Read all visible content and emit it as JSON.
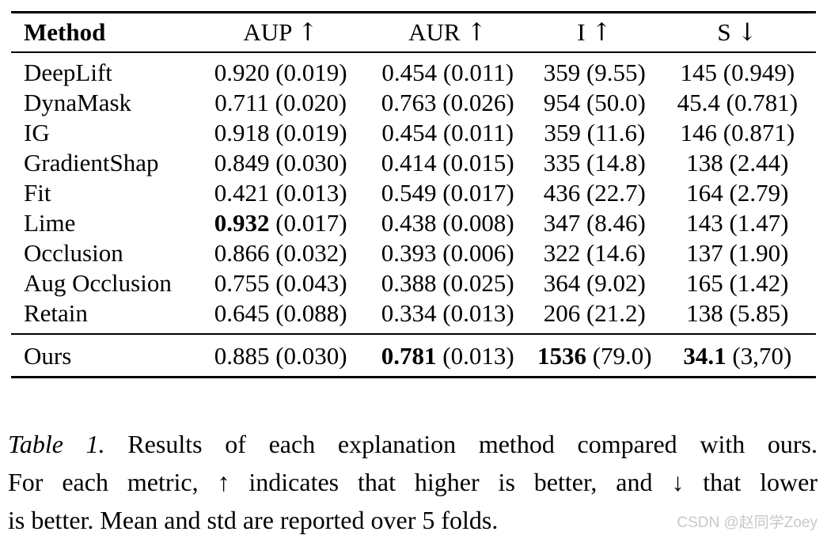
{
  "table": {
    "columns": [
      {
        "label": "Method",
        "arrow": ""
      },
      {
        "label": "AUP",
        "arrow": "↑"
      },
      {
        "label": "AUR",
        "arrow": "↑"
      },
      {
        "label": "I",
        "arrow": "↑"
      },
      {
        "label": "S",
        "arrow": "↓"
      }
    ],
    "rows": [
      {
        "method": "DeepLift",
        "cells": [
          {
            "mean": "0.920",
            "std": "(0.019)"
          },
          {
            "mean": "0.454",
            "std": "(0.011)"
          },
          {
            "mean": "359",
            "std": "(9.55)"
          },
          {
            "mean": "145",
            "std": "(0.949)"
          }
        ]
      },
      {
        "method": "DynaMask",
        "cells": [
          {
            "mean": "0.711",
            "std": "(0.020)"
          },
          {
            "mean": "0.763",
            "std": "(0.026)"
          },
          {
            "mean": "954",
            "std": "(50.0)"
          },
          {
            "mean": "45.4",
            "std": "(0.781)"
          }
        ]
      },
      {
        "method": "IG",
        "cells": [
          {
            "mean": "0.918",
            "std": "(0.019)"
          },
          {
            "mean": "0.454",
            "std": "(0.011)"
          },
          {
            "mean": "359",
            "std": "(11.6)"
          },
          {
            "mean": "146",
            "std": "(0.871)"
          }
        ]
      },
      {
        "method": "GradientShap",
        "cells": [
          {
            "mean": "0.849",
            "std": "(0.030)"
          },
          {
            "mean": "0.414",
            "std": "(0.015)"
          },
          {
            "mean": "335",
            "std": "(14.8)"
          },
          {
            "mean": "138",
            "std": "(2.44)"
          }
        ]
      },
      {
        "method": "Fit",
        "cells": [
          {
            "mean": "0.421",
            "std": "(0.013)"
          },
          {
            "mean": "0.549",
            "std": "(0.017)"
          },
          {
            "mean": "436",
            "std": "(22.7)"
          },
          {
            "mean": "164",
            "std": "(2.79)"
          }
        ]
      },
      {
        "method": "Lime",
        "cells": [
          {
            "mean": "0.932",
            "std": "(0.017)",
            "bold": true
          },
          {
            "mean": "0.438",
            "std": "(0.008)"
          },
          {
            "mean": "347",
            "std": "(8.46)"
          },
          {
            "mean": "143",
            "std": "(1.47)"
          }
        ]
      },
      {
        "method": "Occlusion",
        "cells": [
          {
            "mean": "0.866",
            "std": "(0.032)"
          },
          {
            "mean": "0.393",
            "std": "(0.006)"
          },
          {
            "mean": "322",
            "std": "(14.6)"
          },
          {
            "mean": "137",
            "std": "(1.90)"
          }
        ]
      },
      {
        "method": "Aug Occlusion",
        "cells": [
          {
            "mean": "0.755",
            "std": "(0.043)"
          },
          {
            "mean": "0.388",
            "std": "(0.025)"
          },
          {
            "mean": "364",
            "std": "(9.02)"
          },
          {
            "mean": "165",
            "std": "(1.42)"
          }
        ]
      },
      {
        "method": "Retain",
        "cells": [
          {
            "mean": "0.645",
            "std": "(0.088)"
          },
          {
            "mean": "0.334",
            "std": "(0.013)"
          },
          {
            "mean": "206",
            "std": "(21.2)"
          },
          {
            "mean": "138",
            "std": "(5.85)"
          }
        ]
      },
      {
        "method": "Ours",
        "cells": [
          {
            "mean": "0.885",
            "std": "(0.030)"
          },
          {
            "mean": "0.781",
            "std": "(0.013)",
            "bold": true
          },
          {
            "mean": "1536",
            "std": "(79.0)",
            "bold": true
          },
          {
            "mean": "34.1",
            "std": "(3,70)",
            "bold": true
          }
        ]
      }
    ]
  },
  "caption": {
    "label": "Table 1.",
    "lines": [
      "Results of each explanation method compared with ours.",
      "For each metric, ↑ indicates that higher is better, and ↓ that lower",
      "is better. Mean and std are reported over 5 folds."
    ]
  },
  "watermark": "CSDN @赵同学Zoey"
}
